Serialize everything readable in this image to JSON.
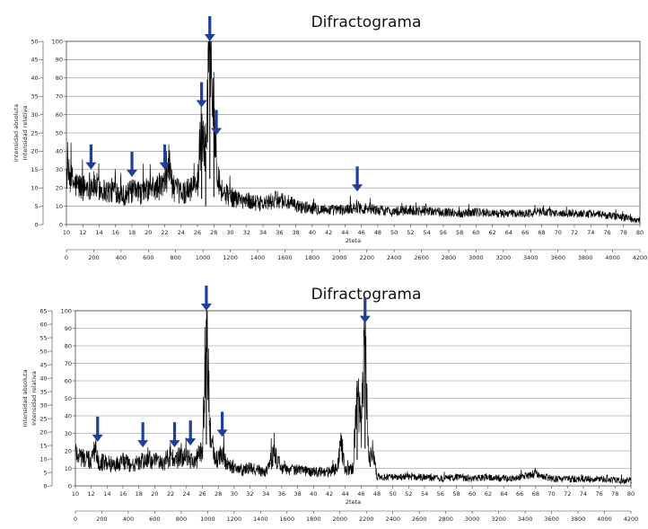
{
  "chart_data": [
    {
      "type": "line",
      "title": "Difractograma",
      "xlabel": "2teta",
      "ylabel_abs": "Intensidad absoluta",
      "ylabel_rel": "Intensidad relativa",
      "xlim": [
        10,
        80
      ],
      "x_ticks": [
        10,
        12,
        14,
        16,
        18,
        20,
        22,
        24,
        26,
        28,
        30,
        32,
        34,
        36,
        38,
        40,
        42,
        44,
        46,
        48,
        50,
        52,
        54,
        56,
        58,
        60,
        62,
        64,
        66,
        68,
        70,
        72,
        74,
        76,
        78,
        80
      ],
      "secondary_xlim": [
        0,
        4200
      ],
      "secondary_x_ticks": [
        0,
        200,
        400,
        600,
        800,
        1000,
        1200,
        1400,
        1600,
        1800,
        2000,
        2200,
        2400,
        2600,
        2800,
        3000,
        3200,
        3400,
        3600,
        3800,
        4000,
        4200
      ],
      "y_abs_lim": [
        0,
        50
      ],
      "y_abs_ticks": [
        0,
        5,
        10,
        15,
        20,
        25,
        30,
        35,
        40,
        45,
        50
      ],
      "y_rel_lim": [
        0,
        100
      ],
      "y_rel_ticks": [
        0,
        10,
        20,
        30,
        40,
        50,
        60,
        70,
        80,
        90,
        100
      ],
      "grid": true,
      "series": [
        {
          "x": [
            10,
            11,
            12,
            13,
            14,
            15,
            16,
            17,
            18,
            19,
            20,
            21,
            22,
            22.5,
            23,
            24,
            25,
            26,
            26.5,
            27,
            27.5,
            28,
            28.5,
            29,
            30,
            31,
            32,
            34,
            36,
            38,
            40,
            42,
            44,
            45.5,
            46,
            48,
            50,
            52,
            54,
            56,
            58,
            60,
            62,
            64,
            66,
            68,
            70,
            72,
            74,
            76,
            78,
            79,
            80
          ],
          "y": [
            28,
            22,
            20,
            22,
            20,
            18,
            19,
            16,
            18,
            17,
            19,
            20,
            22,
            34,
            20,
            17,
            19,
            22,
            56,
            40,
            100,
            60,
            28,
            18,
            15,
            14,
            13,
            11,
            14,
            10,
            9,
            8,
            8,
            10,
            9,
            8,
            7,
            8,
            7,
            7,
            6,
            7,
            6,
            6,
            6,
            7,
            6,
            6,
            6,
            5,
            4,
            3,
            2
          ]
        }
      ],
      "arrows_at_2theta": [
        13,
        18,
        22,
        26.5,
        27.5,
        28.3,
        45.5
      ]
    },
    {
      "type": "line",
      "title": "Difractograma",
      "xlabel": "2teta",
      "ylabel_abs": "Intensidad absoluta",
      "ylabel_rel": "Intensidad relativa",
      "xlim": [
        10,
        80
      ],
      "x_ticks": [
        10,
        12,
        14,
        16,
        18,
        20,
        22,
        24,
        26,
        28,
        30,
        32,
        34,
        36,
        38,
        40,
        42,
        44,
        46,
        48,
        50,
        52,
        54,
        56,
        58,
        60,
        62,
        64,
        66,
        68,
        70,
        72,
        74,
        76,
        78,
        80
      ],
      "secondary_xlim": [
        0,
        4200
      ],
      "secondary_x_ticks": [
        0,
        200,
        400,
        600,
        800,
        1000,
        1200,
        1400,
        1600,
        1800,
        2000,
        2200,
        2400,
        2600,
        2800,
        3000,
        3200,
        3400,
        3600,
        3800,
        4000,
        4200
      ],
      "y_abs_lim": [
        0,
        65
      ],
      "y_abs_ticks": [
        0,
        5,
        10,
        15,
        20,
        25,
        30,
        35,
        40,
        45,
        50,
        55,
        60,
        65
      ],
      "y_rel_lim": [
        0,
        100
      ],
      "y_rel_ticks": [
        0,
        10,
        20,
        30,
        40,
        50,
        60,
        70,
        80,
        90,
        100
      ],
      "grid": true,
      "series": [
        {
          "x": [
            10,
            11,
            12,
            12.5,
            13,
            14,
            15,
            16,
            17,
            18,
            19,
            20,
            21,
            22,
            22.5,
            23,
            24,
            25,
            26,
            26.5,
            27,
            27.5,
            28,
            28.5,
            29,
            30,
            31,
            32,
            33,
            34,
            35,
            36,
            38,
            40,
            42,
            43,
            43.5,
            44,
            45,
            45.5,
            46,
            46.5,
            47,
            47.5,
            48,
            50,
            52,
            54,
            56,
            58,
            60,
            62,
            64,
            66,
            68,
            70,
            72,
            74,
            76,
            78,
            80
          ],
          "y": [
            20,
            16,
            14,
            22,
            14,
            13,
            12,
            14,
            12,
            13,
            15,
            14,
            13,
            17,
            14,
            16,
            16,
            14,
            20,
            95,
            30,
            18,
            14,
            20,
            13,
            10,
            9,
            10,
            9,
            8,
            18,
            10,
            9,
            8,
            8,
            10,
            25,
            9,
            10,
            60,
            30,
            85,
            15,
            20,
            5,
            5,
            5,
            5,
            4,
            5,
            4,
            5,
            4,
            5,
            7,
            4,
            4,
            4,
            4,
            3,
            3
          ]
        }
      ],
      "arrows_at_2theta": [
        12.8,
        18.5,
        22.5,
        24.5,
        26.5,
        28.5,
        46.5
      ]
    }
  ]
}
